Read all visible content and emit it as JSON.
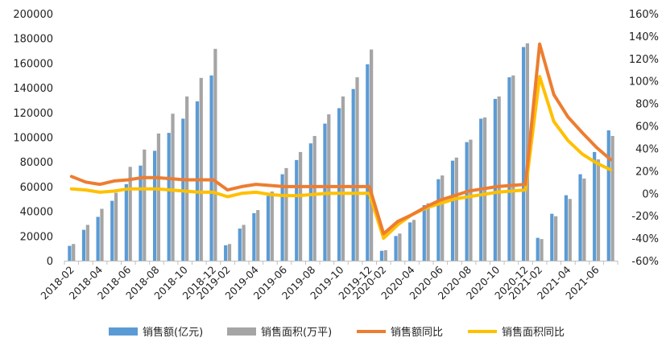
{
  "chart_data": {
    "type": "bar+line",
    "title": "",
    "x": [
      "2018-02",
      "2018-03",
      "2018-04",
      "2018-05",
      "2018-06",
      "2018-07",
      "2018-08",
      "2018-09",
      "2018-10",
      "2018-11",
      "2018-12",
      "2019-02",
      "2019-03",
      "2019-04",
      "2019-05",
      "2019-06",
      "2019-07",
      "2019-08",
      "2019-09",
      "2019-10",
      "2019-11",
      "2019-12",
      "2020-02",
      "2020-03",
      "2020-04",
      "2020-05",
      "2020-06",
      "2020-07",
      "2020-08",
      "2020-09",
      "2020-10",
      "2020-11",
      "2020-12",
      "2021-02",
      "2021-03",
      "2021-04",
      "2021-05",
      "2021-06",
      "2021-07"
    ],
    "x_tick_labels": [
      "2018-02",
      "2018-04",
      "2018-06",
      "2018-08",
      "2018-10",
      "2018-12",
      "2019-02",
      "2019-04",
      "2019-06",
      "2019-08",
      "2019-10",
      "2019-12",
      "2020-02",
      "2020-04",
      "2020-06",
      "2020-08",
      "2020-10",
      "2020-12",
      "2021-02",
      "2021-04",
      "2021-06"
    ],
    "y_left": {
      "min": 0,
      "max": 200000,
      "step": 20000,
      "ticks": [
        "0",
        "20000",
        "40000",
        "60000",
        "80000",
        "100000",
        "120000",
        "140000",
        "160000",
        "180000",
        "200000"
      ]
    },
    "y_right": {
      "min": -60,
      "max": 160,
      "step": 20,
      "ticks": [
        "-60%",
        "-40%",
        "-20%",
        "0%",
        "20%",
        "40%",
        "60%",
        "80%",
        "100%",
        "120%",
        "140%",
        "160%"
      ]
    },
    "series": [
      {
        "name": "销售额(亿元)",
        "type": "bar",
        "axis": "left",
        "color": "#5B9BD5",
        "values": [
          12000,
          25000,
          35500,
          48500,
          62000,
          77000,
          89000,
          103500,
          115000,
          129000,
          150000,
          12500,
          26000,
          38500,
          52500,
          70000,
          81500,
          95000,
          111000,
          123500,
          139000,
          159000,
          8000,
          20000,
          31000,
          45000,
          66000,
          81000,
          96000,
          115000,
          131000,
          148500,
          173000,
          18500,
          38000,
          53000,
          70000,
          88000,
          105500
        ]
      },
      {
        "name": "销售面积(万平)",
        "type": "bar",
        "axis": "left",
        "color": "#A5A5A5",
        "values": [
          13500,
          29000,
          42000,
          55000,
          76000,
          90000,
          103000,
          119000,
          133000,
          148000,
          171500,
          13500,
          29000,
          41000,
          56000,
          75000,
          88000,
          101000,
          118500,
          133000,
          148500,
          171000,
          8500,
          22000,
          33000,
          46500,
          69000,
          83500,
          98000,
          116000,
          133000,
          150000,
          176000,
          17500,
          36000,
          50000,
          66500,
          82000,
          101000
        ]
      },
      {
        "name": "销售额同比",
        "type": "line",
        "axis": "right",
        "color": "#ED7D31",
        "values": [
          15,
          10,
          8,
          11,
          12,
          14,
          14,
          13,
          12,
          12,
          12,
          3,
          6,
          8,
          7,
          6,
          6,
          6,
          6,
          6,
          6,
          6,
          -36,
          -25,
          -19,
          -12,
          -6,
          -2,
          2,
          4,
          6,
          7,
          8,
          133,
          88,
          68,
          54,
          41,
          30
        ]
      },
      {
        "name": "销售面积同比",
        "type": "line",
        "axis": "right",
        "color": "#FFC000",
        "values": [
          4,
          3,
          1,
          2,
          4,
          4,
          4,
          3,
          2,
          1,
          1,
          -3,
          0,
          1,
          -1,
          -2,
          -2,
          -1,
          0,
          0,
          0,
          0,
          -40,
          -28,
          -19,
          -13,
          -9,
          -5,
          -3,
          -1,
          1,
          2,
          3,
          104,
          64,
          47,
          35,
          27,
          21
        ]
      }
    ],
    "legend_position": "bottom",
    "grid": false
  }
}
